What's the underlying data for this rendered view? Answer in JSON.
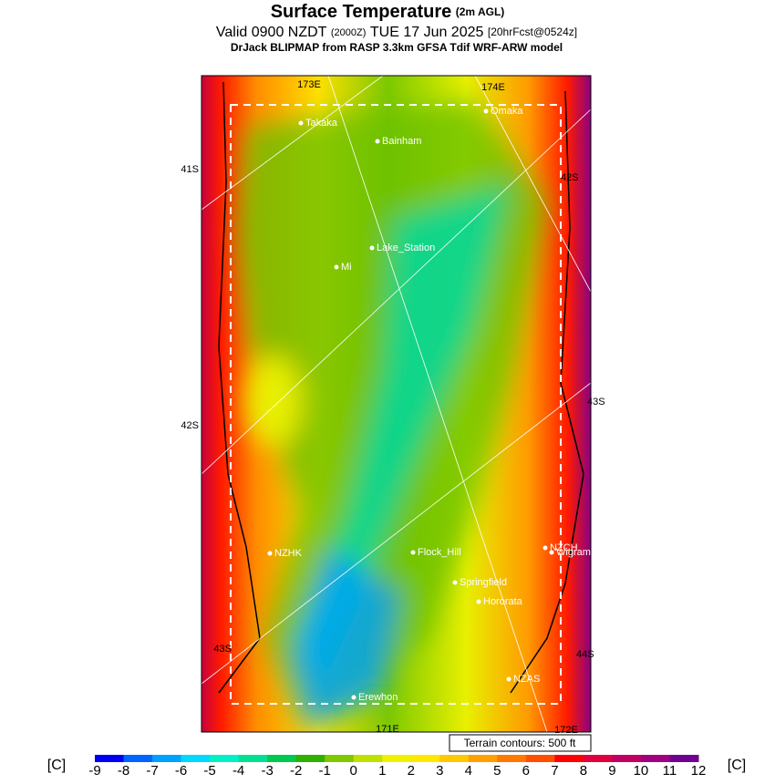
{
  "header": {
    "title": "Surface Temperature",
    "title_note": "(2m AGL)",
    "valid": "Valid 0900 NZDT",
    "valid_utc": "(2000Z)",
    "date": "TUE 17 Jun 2025",
    "forecast": "[20hrFcst@0524z]",
    "subtitle": "DrJack BLIPMAP from RASP 3.3km GFSA Tdif WRF-ARW model"
  },
  "map": {
    "places": [
      "Takaka",
      "Bainham",
      "Omaka",
      "Lake_Station",
      "Mi",
      "NZHK",
      "Flock_Hill",
      "NZCH",
      "Wigram",
      "Springfield",
      "Hororata",
      "NZAS",
      "Erewhon"
    ],
    "grid_labels": [
      "173E",
      "174E",
      "41S",
      "42S",
      "42S",
      "43S",
      "43S",
      "44S",
      "171E",
      "172E"
    ],
    "contour_note": "Terrain contours: 500 ft"
  },
  "colorbar": {
    "unit": "[C]",
    "ticks": [
      -9,
      -8,
      -7,
      -6,
      -5,
      -4,
      -3,
      -2,
      -1,
      0,
      1,
      2,
      3,
      4,
      5,
      6,
      7,
      8,
      9,
      10,
      11,
      12
    ],
    "colors": [
      "#0000f0",
      "#0064ff",
      "#00a0ff",
      "#00d8ff",
      "#00f0c8",
      "#00e090",
      "#00c850",
      "#30b000",
      "#80c800",
      "#c0e000",
      "#f0f000",
      "#ffe800",
      "#ffc800",
      "#ffa000",
      "#ff7800",
      "#ff5000",
      "#ff0000",
      "#e00040",
      "#c00060",
      "#a00080",
      "#700090"
    ]
  }
}
